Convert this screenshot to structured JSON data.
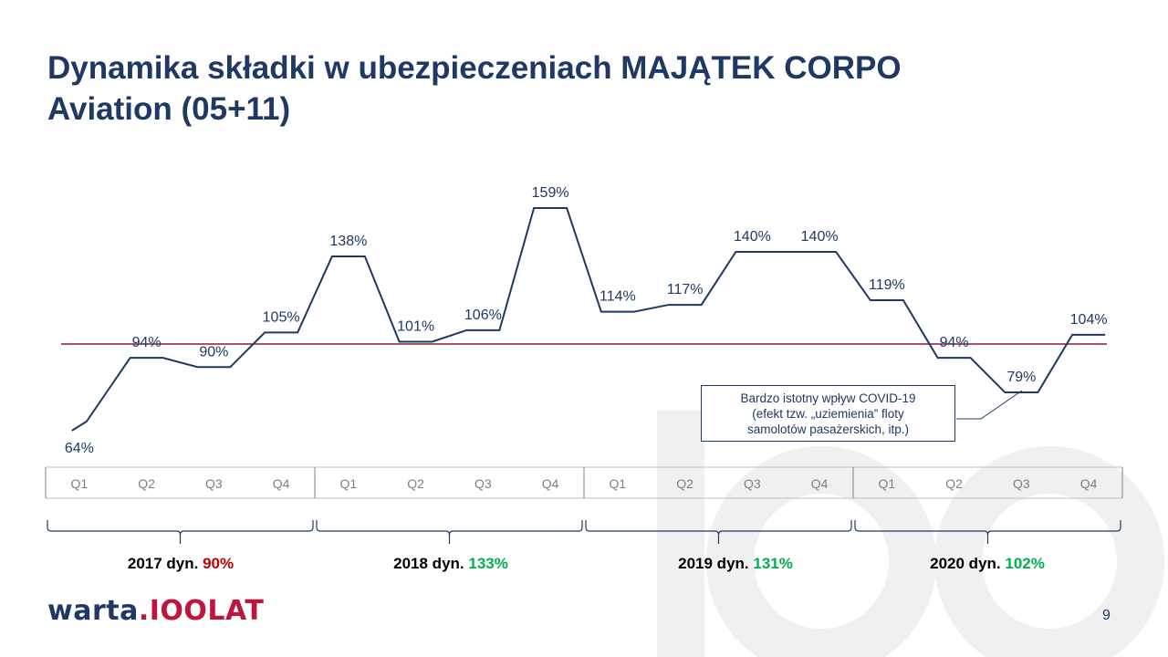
{
  "title": {
    "line1": "Dynamika składki w ubezpieczeniach MAJĄTEK CORPO",
    "line2": "Aviation (05+11)"
  },
  "chart_data": {
    "type": "line",
    "categories": [
      "Q1",
      "Q2",
      "Q3",
      "Q4",
      "Q1",
      "Q2",
      "Q3",
      "Q4",
      "Q1",
      "Q2",
      "Q3",
      "Q4",
      "Q1",
      "Q2",
      "Q3",
      "Q4"
    ],
    "years": [
      "2017",
      "2018",
      "2019",
      "2020"
    ],
    "series": [
      {
        "values": [
          64,
          94,
          90,
          105,
          138,
          101,
          106,
          159,
          114,
          117,
          140,
          140,
          119,
          94,
          79,
          104
        ]
      }
    ],
    "data_labels": [
      "64%",
      "94%",
      "90%",
      "105%",
      "138%",
      "101%",
      "106%",
      "159%",
      "114%",
      "117%",
      "140%",
      "140%",
      "119%",
      "94%",
      "79%",
      "104%"
    ],
    "reference_line": 100,
    "year_summaries": [
      {
        "label": "2017 dyn.",
        "value": "90%",
        "status": "bad"
      },
      {
        "label": "2018 dyn.",
        "value": "133%",
        "status": "good"
      },
      {
        "label": "2019 dyn.",
        "value": "131%",
        "status": "good"
      },
      {
        "label": "2020 dyn.",
        "value": "102%",
        "status": "good"
      }
    ],
    "colors": {
      "line": "#1f3864",
      "reference": "#8b1a3c",
      "good": "#00b050",
      "bad": "#c00000",
      "axis_text": "#7f7f7f"
    }
  },
  "annotation": {
    "line1": "Bardzo istotny wpływ COVID-19",
    "line2": "(efekt tzw. „uziemienia” floty",
    "line3": "samolotów pasażerskich, itp.)"
  },
  "logo": {
    "warta": "warta",
    "dot": ".",
    "lat": "IOOLAT"
  },
  "page_number": "9"
}
